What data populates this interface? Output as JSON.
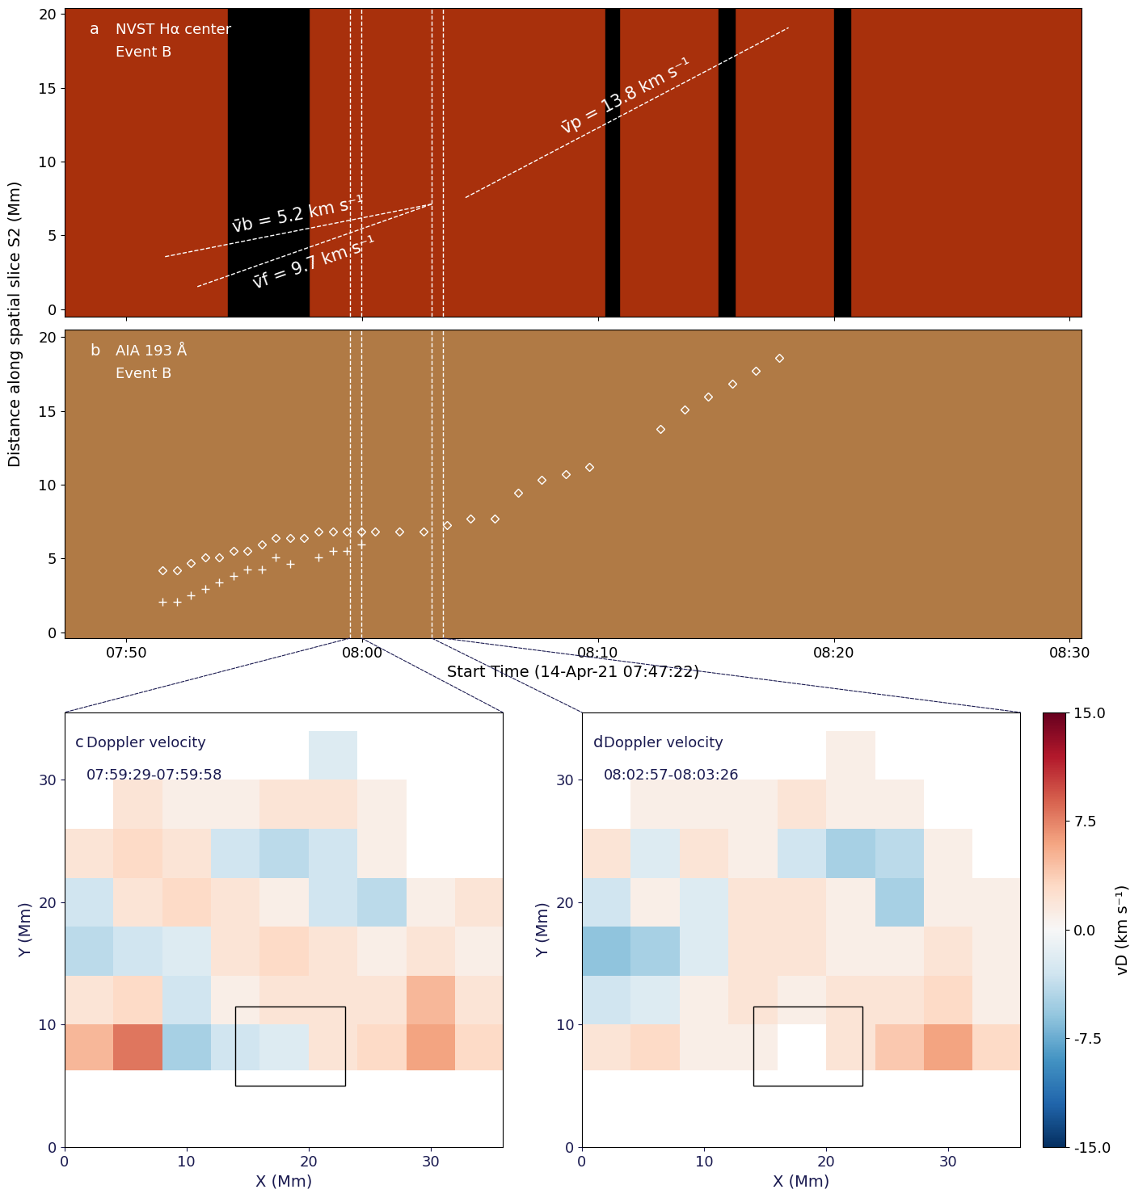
{
  "chart_data": [
    {
      "type": "time_distance",
      "panel": "a",
      "labels": [
        "NVST Hα center",
        "Event B"
      ],
      "ylabel": "Distance along spatial slice S2 (Mm)",
      "xlim": [
        47.37,
        90.5
      ],
      "ylim": [
        -0.5,
        20.4
      ],
      "xticks": [
        {
          "value": 50,
          "label": "07:50"
        },
        {
          "value": 60,
          "label": "08:00"
        },
        {
          "value": 70,
          "label": "08:10"
        },
        {
          "value": 80,
          "label": "08:20"
        },
        {
          "value": 90,
          "label": "08:30"
        }
      ],
      "yticks": [
        0,
        5,
        10,
        15,
        20
      ],
      "tick_labels": "y",
      "data_gaps": [
        [
          54.32,
          57.74
        ],
        [
          70.3,
          70.9
        ],
        [
          75.1,
          75.8
        ],
        [
          80.0,
          80.7
        ]
      ],
      "time_marks": [
        59.48,
        59.97,
        62.95,
        63.43
      ],
      "fit_lines": [
        {
          "label": "v̄b = 5.2 km s⁻¹",
          "x": [
            51.64,
            62.95
          ],
          "y": [
            3.56,
            7.12
          ]
        },
        {
          "label": "v̄f = 9.7 km s⁻¹",
          "x": [
            53.01,
            62.95
          ],
          "y": [
            1.53,
            7.12
          ]
        },
        {
          "label": "v̄p = 13.8 km s⁻¹",
          "x": [
            64.38,
            78.08
          ],
          "y": [
            7.56,
            19.07
          ]
        }
      ]
    },
    {
      "type": "time_distance",
      "panel": "b",
      "labels": [
        "AIA 193 Å",
        "Event B"
      ],
      "xlabel": "Start Time (14-Apr-21 07:47:22)",
      "xlim": [
        47.37,
        90.5
      ],
      "ylim": [
        -0.4,
        20.5
      ],
      "xticks": [
        {
          "value": 50,
          "label": "07:50"
        },
        {
          "value": 60,
          "label": "08:00"
        },
        {
          "value": 70,
          "label": "08:10"
        },
        {
          "value": 80,
          "label": "08:20"
        },
        {
          "value": 90,
          "label": "08:30"
        }
      ],
      "yticks": [
        0,
        5,
        10,
        15,
        20
      ],
      "time_marks": [
        59.48,
        59.97,
        62.95,
        63.43
      ],
      "series": [
        {
          "marker": "D",
          "color": "#ffffff",
          "x": [
            51.54,
            52.16,
            52.74,
            53.36,
            53.94,
            54.55,
            55.14,
            55.75,
            56.34,
            56.95,
            57.53,
            58.15,
            58.77,
            59.35,
            59.97,
            60.55,
            61.58,
            62.6,
            63.6,
            64.59,
            65.62,
            66.61,
            67.6,
            68.63,
            69.62,
            72.64,
            73.66,
            74.66,
            75.68,
            76.68,
            77.67
          ],
          "values": [
            4.21,
            4.21,
            4.7,
            5.08,
            5.08,
            5.52,
            5.52,
            5.96,
            6.39,
            6.39,
            6.39,
            6.83,
            6.83,
            6.83,
            6.83,
            6.83,
            6.83,
            6.83,
            7.27,
            7.7,
            7.7,
            9.45,
            10.33,
            10.71,
            11.2,
            13.77,
            15.08,
            15.96,
            16.83,
            17.7,
            18.58
          ]
        },
        {
          "marker": "+",
          "color": "#ffffff",
          "x": [
            51.54,
            52.16,
            52.74,
            53.36,
            53.94,
            54.55,
            55.14,
            55.75,
            56.34,
            56.95,
            58.15,
            58.77,
            59.35,
            59.97
          ],
          "values": [
            2.08,
            2.08,
            2.51,
            2.95,
            3.39,
            3.83,
            4.26,
            4.26,
            5.08,
            4.64,
            5.08,
            5.52,
            5.52,
            5.96
          ]
        }
      ]
    },
    {
      "type": "heatmap",
      "panel": "c",
      "labels": [
        "Doppler velocity",
        "07:59:29-07:59:58"
      ],
      "xlabel": "X (Mm)",
      "ylabel": "Y (Mm)",
      "xlim": [
        0,
        35.9
      ],
      "ylim": [
        0,
        35.5
      ],
      "xticks": [
        0,
        10,
        20,
        30
      ],
      "yticks": [
        0,
        10,
        20,
        30
      ],
      "x_edges": [
        0,
        4,
        8,
        12,
        16,
        20,
        24,
        28,
        32,
        36
      ],
      "y_edges": [
        6.3,
        10,
        14,
        18,
        22,
        26,
        30,
        34
      ],
      "cells": [
        [
          5,
          8,
          -5,
          -3,
          -2,
          2,
          3,
          6,
          3
        ],
        [
          2,
          3,
          -3,
          1,
          2,
          2,
          2,
          5,
          2
        ],
        [
          -4,
          -3,
          -2,
          2,
          3,
          2,
          1,
          2,
          1
        ],
        [
          -3,
          2,
          3,
          2,
          1,
          -3,
          -4,
          1,
          2
        ],
        [
          2,
          3,
          2,
          -3,
          -4,
          -3,
          1,
          null,
          null
        ],
        [
          null,
          2,
          1,
          1,
          2,
          2,
          1,
          null,
          null
        ],
        [
          null,
          null,
          null,
          null,
          null,
          -2,
          null,
          null,
          null
        ]
      ],
      "box": {
        "x": [
          14,
          23
        ],
        "y": [
          5,
          11.5
        ]
      }
    },
    {
      "type": "heatmap",
      "panel": "d",
      "labels": [
        "Doppler velocity",
        "08:02:57-08:03:26"
      ],
      "xlabel": "X (Mm)",
      "ylabel": "Y (Mm)",
      "xlim": [
        0,
        35.9
      ],
      "ylim": [
        0,
        35.5
      ],
      "xticks": [
        0,
        10,
        20,
        30
      ],
      "yticks": [
        0,
        10,
        20,
        30
      ],
      "x_edges": [
        0,
        4,
        8,
        12,
        16,
        20,
        24,
        28,
        32,
        36
      ],
      "y_edges": [
        6.3,
        10,
        14,
        18,
        22,
        26,
        30,
        34
      ],
      "cells": [
        [
          2,
          3,
          1,
          1,
          null,
          2,
          4,
          6,
          3
        ],
        [
          -3,
          -2,
          1,
          2,
          1,
          2,
          2,
          3,
          1
        ],
        [
          -6,
          -5,
          -2,
          2,
          2,
          1,
          1,
          2,
          1
        ],
        [
          -3,
          1,
          -2,
          2,
          2,
          1,
          -5,
          1,
          1
        ],
        [
          2,
          -2,
          2,
          1,
          -3,
          -5,
          -4,
          1,
          null
        ],
        [
          null,
          1,
          1,
          1,
          2,
          1,
          1,
          null,
          null
        ],
        [
          null,
          null,
          null,
          null,
          null,
          1,
          null,
          null,
          null
        ]
      ],
      "box": {
        "x": [
          14,
          23
        ],
        "y": [
          5,
          11.5
        ]
      }
    }
  ],
  "colorbar": {
    "label": "vD (km s⁻¹)",
    "range": [
      -15,
      15
    ],
    "ticks": [
      {
        "value": -15,
        "label": "-15.0"
      },
      {
        "value": -7.5,
        "label": "-7.5"
      },
      {
        "value": 0,
        "label": "0.0"
      },
      {
        "value": 7.5,
        "label": "7.5"
      },
      {
        "value": 15,
        "label": "15.0"
      }
    ]
  }
}
